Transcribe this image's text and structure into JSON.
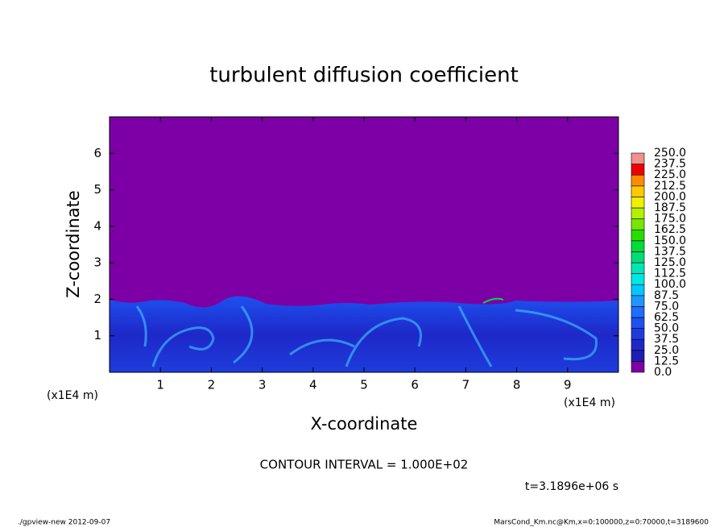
{
  "chart_data": {
    "type": "contour",
    "title": "turbulent diffusion coefficient",
    "xlabel": "X-coordinate",
    "ylabel": "Z-coordinate",
    "xunits": "(x1E4 m)",
    "xlim": [
      0,
      10
    ],
    "ylim": [
      0,
      7
    ],
    "xticks": [
      1,
      2,
      3,
      4,
      5,
      6,
      7,
      8,
      9
    ],
    "yticks": [
      1,
      2,
      3,
      4,
      5,
      6
    ],
    "contour_note": "CONTOUR INTERVAL = 1.000E+02",
    "time_label": "t=3.1896e+06 s",
    "footer_left": "./gpview-new  2012-09-07",
    "footer_right": "MarsCond_Km.nc@Km,x=0:100000,z=0:70000,t=3189600",
    "colorbar": {
      "levels": [
        {
          "value": 0,
          "label": "0.0"
        },
        {
          "value": 12.5,
          "label": "12.5"
        },
        {
          "value": 25,
          "label": "25.0"
        },
        {
          "value": 37.5,
          "label": "37.5"
        },
        {
          "value": 50,
          "label": "50.0"
        },
        {
          "value": 62.5,
          "label": "62.5"
        },
        {
          "value": 75,
          "label": "75.0"
        },
        {
          "value": 87.5,
          "label": "87.5"
        },
        {
          "value": 100,
          "label": "100.0"
        },
        {
          "value": 112.5,
          "label": "112.5"
        },
        {
          "value": 125,
          "label": "125.0"
        },
        {
          "value": 137.5,
          "label": "137.5"
        },
        {
          "value": 150,
          "label": "150.0"
        },
        {
          "value": 162.5,
          "label": "162.5"
        },
        {
          "value": 175,
          "label": "175.0"
        },
        {
          "value": 187.5,
          "label": "187.5"
        },
        {
          "value": 200,
          "label": "200.0"
        },
        {
          "value": 212.5,
          "label": "212.5"
        },
        {
          "value": 225,
          "label": "225.0"
        },
        {
          "value": 237.5,
          "label": "237.5"
        },
        {
          "value": 250,
          "label": "250.0"
        }
      ],
      "colors": [
        "#7c00a6",
        "#1e1eb4",
        "#1e28c8",
        "#1e3cdc",
        "#1e50f0",
        "#1e6eff",
        "#1e96ff",
        "#00c8ff",
        "#00e6e6",
        "#00e6b4",
        "#00dc78",
        "#00dc3c",
        "#28dc00",
        "#78e600",
        "#b4f000",
        "#f0f000",
        "#ffc800",
        "#ff8c00",
        "#f00000",
        "#f09090"
      ]
    }
  }
}
